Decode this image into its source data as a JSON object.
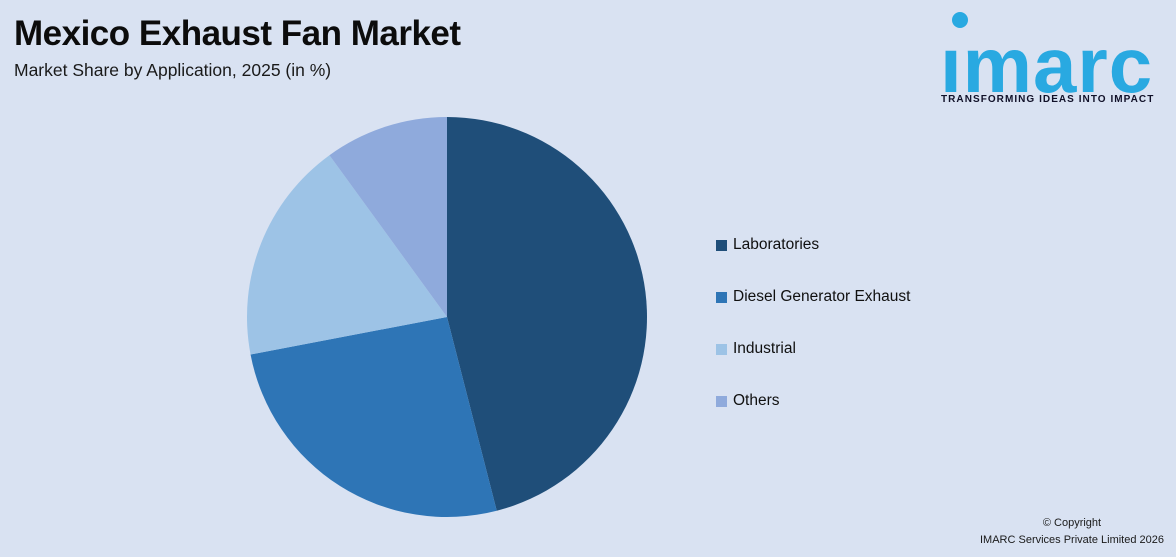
{
  "header": {
    "title": "Mexico Exhaust Fan Market",
    "subtitle": "Market Share by Application, 2025 (in %)"
  },
  "logo": {
    "wordmark": "imarc",
    "tagline": "TRANSFORMING IDEAS INTO IMPACT",
    "brand_color": "#29A9E1"
  },
  "footer": {
    "line1": "© Copyright",
    "line2": "IMARC Services Private Limited 2026"
  },
  "colors": {
    "background": "#D9E2F2",
    "title_text": "#0C0C0C"
  },
  "chart_data": {
    "type": "pie",
    "title": "Mexico Exhaust Fan Market",
    "subtitle": "Market Share by Application, 2025 (in %)",
    "unit": "%",
    "start_angle_deg": 0,
    "direction": "clockwise",
    "legend_position": "right",
    "data_labels_shown": false,
    "slices": [
      {
        "label": "Laboratories",
        "value": 46,
        "color": "#1F4E79"
      },
      {
        "label": "Diesel Generator Exhaust",
        "value": 26,
        "color": "#2E75B6"
      },
      {
        "label": "Industrial",
        "value": 18,
        "color": "#9DC3E6"
      },
      {
        "label": "Others",
        "value": 10,
        "color": "#8FAADC"
      }
    ]
  }
}
